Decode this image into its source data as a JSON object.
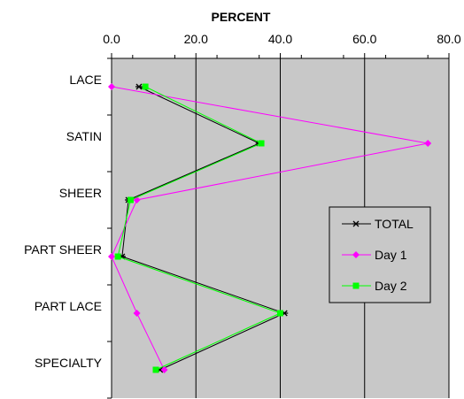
{
  "chart_data": {
    "type": "line",
    "orientation": "horizontal-value-axis",
    "title": "PERCENT",
    "categories": [
      "LACE",
      "SATIN",
      "SHEER",
      "PART SHEER",
      "PART LACE",
      "SPECIALTY"
    ],
    "x_ticks": [
      "0.0",
      "20.0",
      "40.0",
      "60.0",
      "80.0"
    ],
    "xlim": [
      0,
      80
    ],
    "grid": "vertical lines at major ticks",
    "background_color": "#c8c8c8",
    "legend_position": "right",
    "series": [
      {
        "name": "TOTAL",
        "color": "#000000",
        "marker": "star",
        "values": [
          6.5,
          35.0,
          4.0,
          2.5,
          41.0,
          11.5
        ]
      },
      {
        "name": "Day 1",
        "color": "#ff00ff",
        "marker": "diamond",
        "values": [
          0.0,
          75.0,
          6.0,
          0.0,
          6.0,
          12.5
        ]
      },
      {
        "name": "Day 2",
        "color": "#00ff00",
        "marker": "square",
        "values": [
          8.0,
          35.5,
          4.5,
          1.5,
          40.0,
          10.5
        ]
      }
    ]
  }
}
